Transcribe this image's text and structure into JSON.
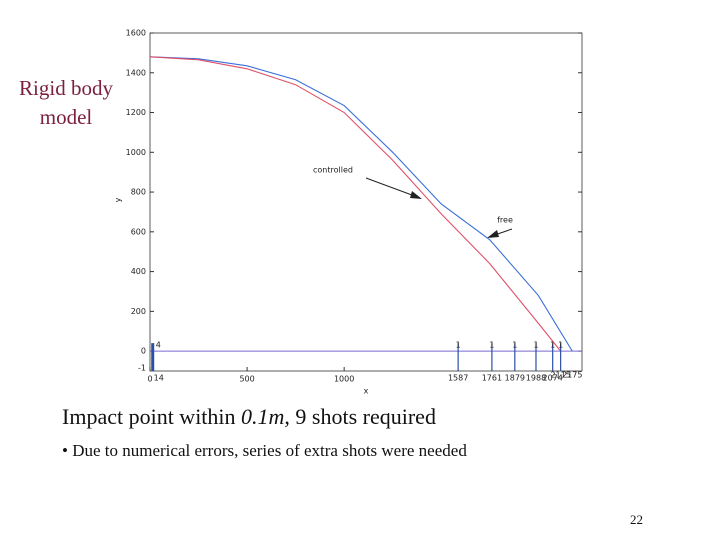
{
  "slide": {
    "side_label": "Rigid body\nmodel",
    "caption": [
      "Impact point within ",
      "0.1m",
      ", 9 shots required"
    ],
    "bullet": "Due to numerical errors, series of extra shots were needed",
    "page_number": "22"
  },
  "chart_data": {
    "type": "line",
    "x_label": "x",
    "y_label": "y",
    "xlim": [
      0,
      2225
    ],
    "xticks": [
      0,
      500,
      1000
    ],
    "ylim": [
      -100,
      1600
    ],
    "yticks": [
      0,
      200,
      400,
      600,
      800,
      1000,
      1200,
      1400,
      1600
    ],
    "y_axis_fragment": "-1",
    "series": [
      {
        "name": "free",
        "color": "#3a6fd8",
        "x": [
          0,
          250,
          500,
          750,
          1000,
          1250,
          1500,
          1750,
          2000,
          2175
        ],
        "values": [
          1480,
          1470,
          1435,
          1365,
          1235,
          1000,
          740,
          560,
          280,
          0
        ]
      },
      {
        "name": "controlled",
        "color": "#e0506a",
        "x": [
          0,
          250,
          500,
          750,
          1000,
          1250,
          1500,
          1750,
          2000,
          2115
        ],
        "values": [
          1480,
          1465,
          1420,
          1340,
          1200,
          960,
          690,
          440,
          140,
          0
        ]
      }
    ],
    "ground_color": "#7a6ad0",
    "impacts": {
      "color": "#2a4fa8",
      "x": [
        14,
        1587,
        1761,
        1879,
        1988,
        2074,
        2115,
        2175
      ],
      "counts": [
        4,
        1,
        1,
        1,
        1,
        1,
        1,
        null
      ]
    }
  }
}
